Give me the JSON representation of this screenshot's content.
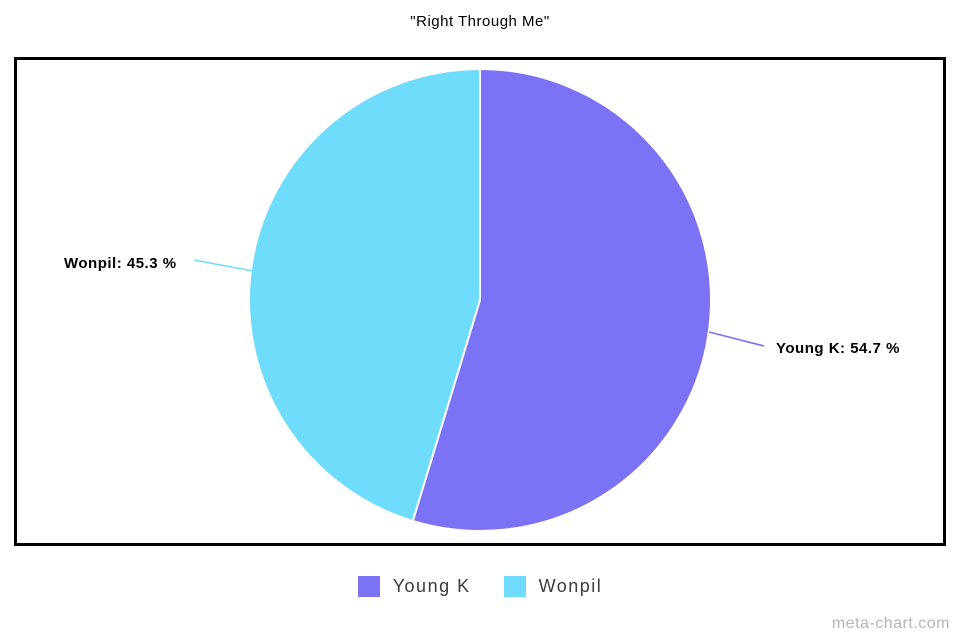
{
  "page": {
    "title": "\"Right Through Me\"",
    "watermark": "meta-chart.com"
  },
  "chart_data": {
    "type": "pie",
    "title": "\"Right Through Me\"",
    "categories": [
      "Young K",
      "Wonpil"
    ],
    "values": [
      54.7,
      45.3
    ],
    "unit": "%",
    "colors": [
      "#7b72f6",
      "#70dcfb"
    ],
    "slice_labels": [
      "Young K: 54.7 %",
      "Wonpil: 45.3 %"
    ],
    "slice_border_color": "#ffffff",
    "start_angle_deg": 0,
    "direction": "clockwise",
    "legend_position": "bottom"
  },
  "legend": {
    "items": [
      {
        "label": "Young K",
        "color": "#7b72f6"
      },
      {
        "label": "Wonpil",
        "color": "#70dcfb"
      }
    ]
  }
}
